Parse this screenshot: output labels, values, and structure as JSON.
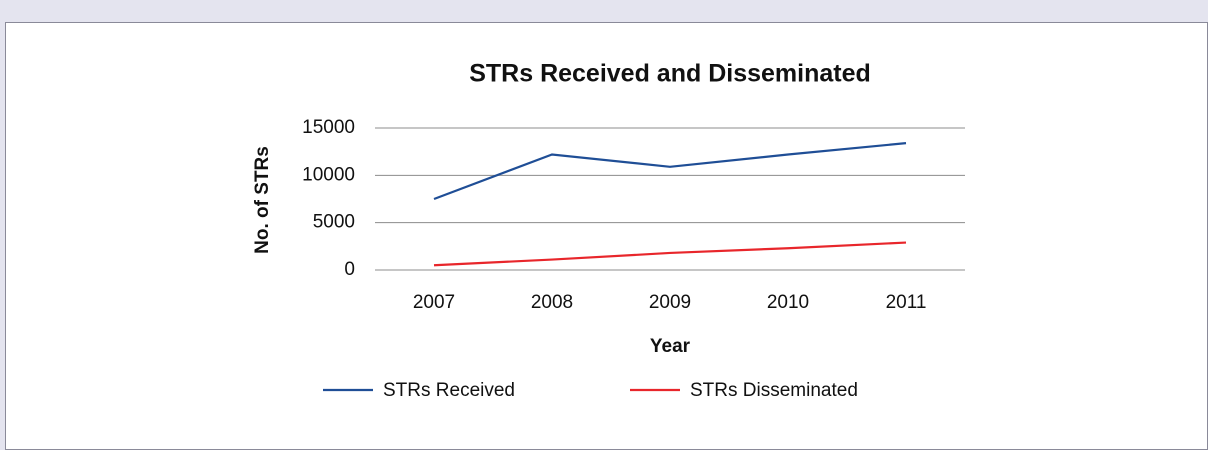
{
  "chart_data": {
    "type": "line",
    "title": "STRs Received and Disseminated",
    "x_label": "Year",
    "y_label": "No. of STRs",
    "categories": [
      "2007",
      "2008",
      "2009",
      "2010",
      "2011"
    ],
    "series": [
      {
        "name": "STRs Received",
        "color": "#1f4e96",
        "values": [
          7500,
          12200,
          10900,
          12200,
          13400
        ]
      },
      {
        "name": "STRs Disseminated",
        "color": "#e8262b",
        "values": [
          500,
          1100,
          1800,
          2300,
          2900
        ]
      }
    ],
    "ylim": [
      0,
      15000
    ],
    "yticks": [
      0,
      5000,
      10000,
      15000
    ],
    "grid": true,
    "legend": "bottom"
  }
}
